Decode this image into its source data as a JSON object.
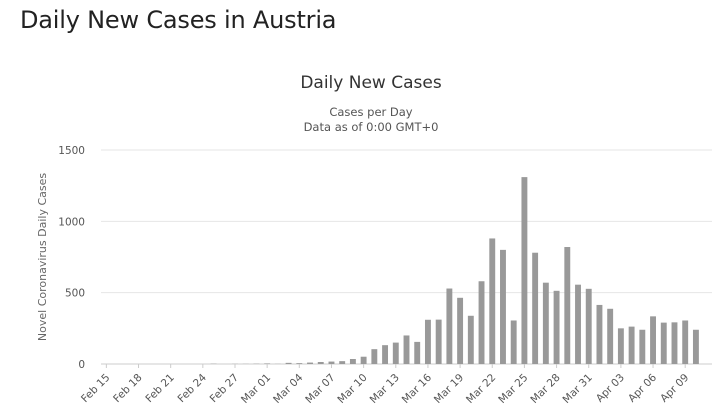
{
  "page": {
    "heading": "Daily New Cases in Austria"
  },
  "chart_data": {
    "type": "bar",
    "title": "Daily New Cases",
    "subtitle_lines": [
      "Cases per Day",
      "Data as of 0:00 GMT+0"
    ],
    "ylabel": "Novel Coronavirus Daily Cases",
    "xlabel": "",
    "ylim": [
      0,
      1500
    ],
    "yticks": [
      0,
      500,
      1000,
      1500
    ],
    "grid": true,
    "legend": "none",
    "bar_color": "#999999",
    "categories": [
      "Feb 15",
      "Feb 16",
      "Feb 17",
      "Feb 18",
      "Feb 19",
      "Feb 20",
      "Feb 21",
      "Feb 22",
      "Feb 23",
      "Feb 24",
      "Feb 25",
      "Feb 26",
      "Feb 27",
      "Feb 28",
      "Feb 29",
      "Mar 01",
      "Mar 02",
      "Mar 03",
      "Mar 04",
      "Mar 05",
      "Mar 06",
      "Mar 07",
      "Mar 08",
      "Mar 09",
      "Mar 10",
      "Mar 11",
      "Mar 12",
      "Mar 13",
      "Mar 14",
      "Mar 15",
      "Mar 16",
      "Mar 17",
      "Mar 18",
      "Mar 19",
      "Mar 20",
      "Mar 21",
      "Mar 22",
      "Mar 23",
      "Mar 24",
      "Mar 25",
      "Mar 26",
      "Mar 27",
      "Mar 28",
      "Mar 29",
      "Mar 30",
      "Mar 31",
      "Apr 01",
      "Apr 02",
      "Apr 03",
      "Apr 04",
      "Apr 05",
      "Apr 06",
      "Apr 07",
      "Apr 08",
      "Apr 09",
      "Apr 10",
      "Apr 11"
    ],
    "values": [
      0,
      0,
      0,
      0,
      0,
      0,
      0,
      0,
      0,
      0,
      2,
      0,
      1,
      1,
      2,
      4,
      1,
      8,
      6,
      10,
      14,
      17,
      20,
      35,
      51,
      104,
      132,
      150,
      200,
      155,
      310,
      311,
      529,
      464,
      338,
      580,
      880,
      800,
      305,
      1310,
      780,
      570,
      513,
      820,
      556,
      527,
      414,
      387,
      250,
      262,
      240,
      334,
      290,
      292,
      305,
      240,
      0
    ],
    "tick_labels": [
      "Feb 15",
      "Feb 18",
      "Feb 21",
      "Feb 24",
      "Feb 27",
      "Mar 01",
      "Mar 04",
      "Mar 07",
      "Mar 10",
      "Mar 13",
      "Mar 16",
      "Mar 19",
      "Mar 22",
      "Mar 25",
      "Mar 28",
      "Mar 31",
      "Apr 03",
      "Apr 06",
      "Apr 09"
    ]
  }
}
